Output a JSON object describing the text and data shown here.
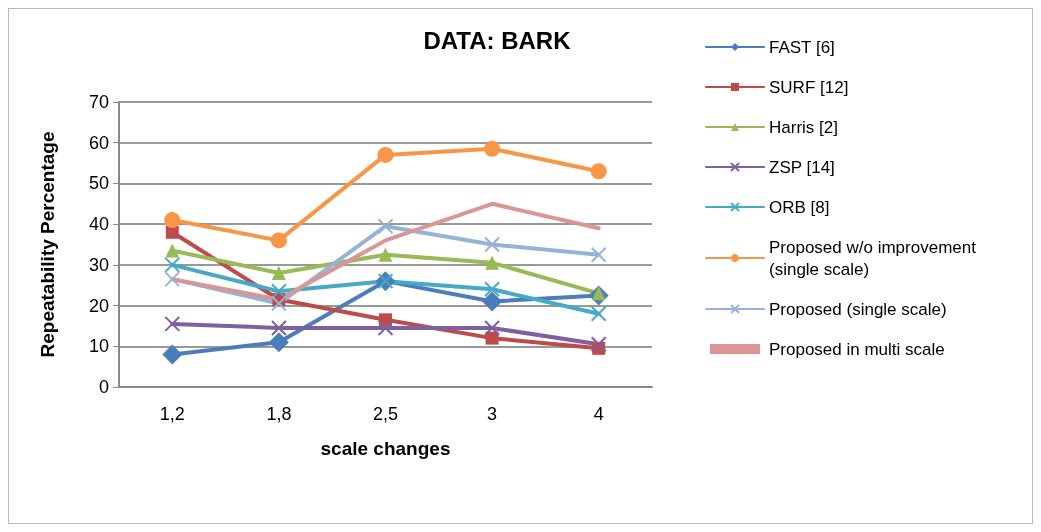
{
  "chart_data": {
    "type": "line",
    "title": "DATA: BARK",
    "xlabel": "scale changes",
    "ylabel": "Repeatability Percentage",
    "categories": [
      "1,2",
      "1,8",
      "2,5",
      "3",
      "4"
    ],
    "ylim": [
      0,
      70
    ],
    "yticks": [
      0,
      10,
      20,
      30,
      40,
      50,
      60,
      70
    ],
    "grid": "y",
    "legend": "right",
    "series": [
      {
        "name": "FAST [6]",
        "color": "#4a7ebb",
        "marker": "diamond",
        "values": [
          8,
          11,
          26,
          21,
          22.5
        ]
      },
      {
        "name": "SURF [12]",
        "color": "#be4b48",
        "marker": "square",
        "values": [
          38,
          21.5,
          16.5,
          12,
          9.5
        ]
      },
      {
        "name": "Harris [2]",
        "color": "#98b954",
        "marker": "triangle",
        "values": [
          33.5,
          28,
          32.5,
          30.5,
          23
        ]
      },
      {
        "name": "ZSP [14]",
        "color": "#7d60a0",
        "marker": "cross",
        "values": [
          15.5,
          14.5,
          14.5,
          14.5,
          10.5
        ]
      },
      {
        "name": "ORB [8]",
        "color": "#46aac5",
        "marker": "cross",
        "values": [
          30,
          23.5,
          26,
          24,
          18
        ]
      },
      {
        "name": "Proposed w/o improvement (single scale)",
        "color": "#f79646",
        "marker": "circle",
        "values": [
          41,
          36,
          57,
          58.5,
          53
        ]
      },
      {
        "name": "Proposed (single scale)",
        "color": "#95b3d7",
        "marker": "cross",
        "values": [
          26.5,
          20.5,
          39.5,
          35,
          32.5
        ]
      },
      {
        "name": "Proposed in multi scale",
        "color": "#d99694",
        "marker": "none",
        "values": [
          26.5,
          21.5,
          36,
          45,
          39
        ]
      }
    ]
  }
}
